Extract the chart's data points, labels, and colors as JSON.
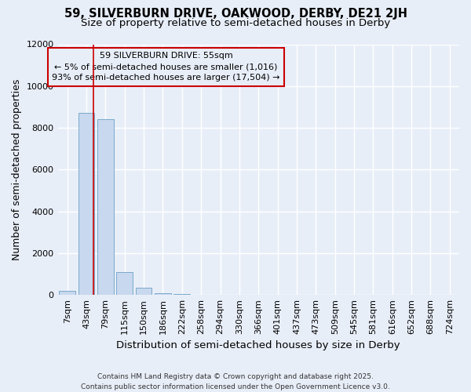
{
  "title_line1": "59, SILVERBURN DRIVE, OAKWOOD, DERBY, DE21 2JH",
  "title_line2": "Size of property relative to semi-detached houses in Derby",
  "xlabel": "Distribution of semi-detached houses by size in Derby",
  "ylabel": "Number of semi-detached properties",
  "footnote": "Contains HM Land Registry data © Crown copyright and database right 2025.\nContains public sector information licensed under the Open Government Licence v3.0.",
  "bins": [
    "7sqm",
    "43sqm",
    "79sqm",
    "115sqm",
    "150sqm",
    "186sqm",
    "222sqm",
    "258sqm",
    "294sqm",
    "330sqm",
    "366sqm",
    "401sqm",
    "437sqm",
    "473sqm",
    "509sqm",
    "545sqm",
    "581sqm",
    "616sqm",
    "652sqm",
    "688sqm",
    "724sqm"
  ],
  "values": [
    200,
    8700,
    8400,
    1100,
    350,
    80,
    40,
    0,
    0,
    0,
    0,
    0,
    0,
    0,
    0,
    0,
    0,
    0,
    0,
    0,
    0
  ],
  "bar_color": "#c8d8ee",
  "bar_edge_color": "#7aaacb",
  "property_line_x": 1.35,
  "property_line_color": "#cc0000",
  "annotation_text": "59 SILVERBURN DRIVE: 55sqm\n← 5% of semi-detached houses are smaller (1,016)\n93% of semi-detached houses are larger (17,504) →",
  "annotation_box_color": "#cc0000",
  "ylim": [
    0,
    12000
  ],
  "yticks": [
    0,
    2000,
    4000,
    6000,
    8000,
    10000,
    12000
  ],
  "bg_color": "#e8eef8",
  "grid_color": "#ffffff",
  "title_fontsize": 10.5,
  "subtitle_fontsize": 9.5,
  "axis_label_fontsize": 9,
  "tick_fontsize": 8,
  "annotation_fontsize": 8
}
